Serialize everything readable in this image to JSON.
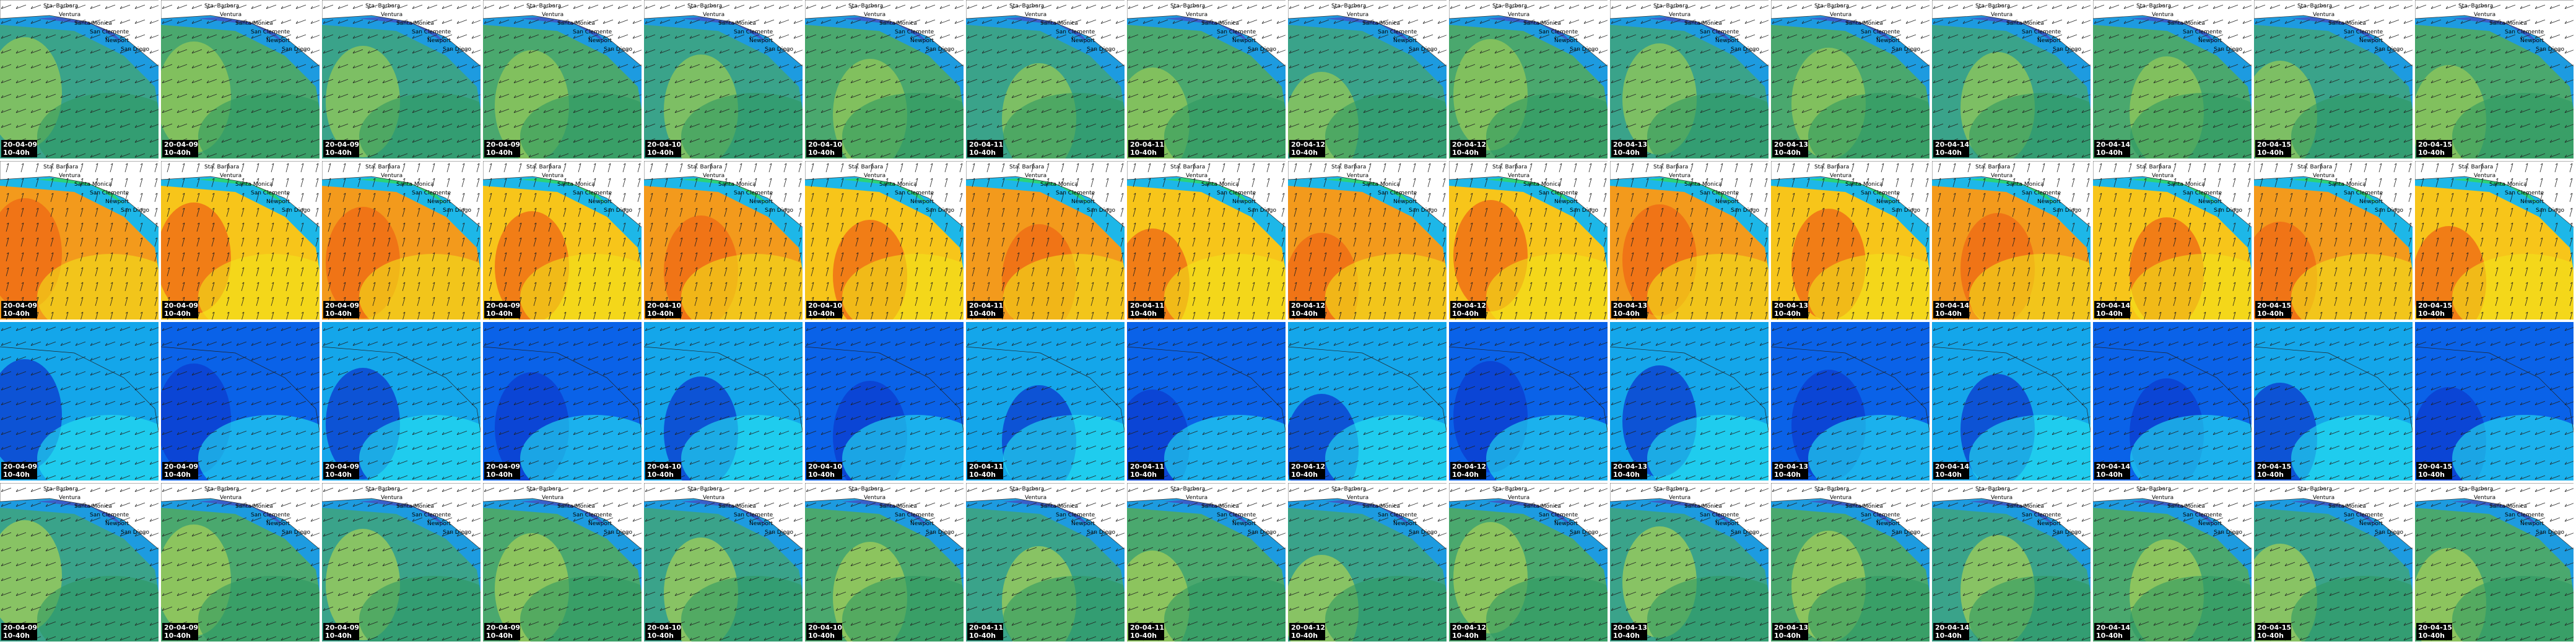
{
  "columns": [
    {
      "date": "20-04-09",
      "time": "10-40h"
    },
    {
      "date": "20-04-09",
      "time": "10-40h"
    },
    {
      "date": "20-04-09",
      "time": "10-40h"
    },
    {
      "date": "20-04-09",
      "time": "10-40h"
    },
    {
      "date": "20-04-10",
      "time": "10-40h"
    },
    {
      "date": "20-04-10",
      "time": "10-40h"
    },
    {
      "date": "20-04-11",
      "time": "10-40h"
    },
    {
      "date": "20-04-11",
      "time": "10-40h"
    },
    {
      "date": "20-04-12",
      "time": "10-40h"
    },
    {
      "date": "20-04-12",
      "time": "10-40h"
    },
    {
      "date": "20-04-13",
      "time": "10-40h"
    },
    {
      "date": "20-04-13",
      "time": "10-40h"
    },
    {
      "date": "20-04-14",
      "time": "10-40h"
    },
    {
      "date": "20-04-14",
      "time": "10-40h"
    },
    {
      "date": "20-04-15",
      "time": "10-40h"
    },
    {
      "date": "20-04-15",
      "time": "10-40h"
    }
  ],
  "places": [
    "Sta. Barbara",
    "Ventura",
    "Santa Monica",
    "San Clemente",
    "Newport",
    "San Diego"
  ]
}
